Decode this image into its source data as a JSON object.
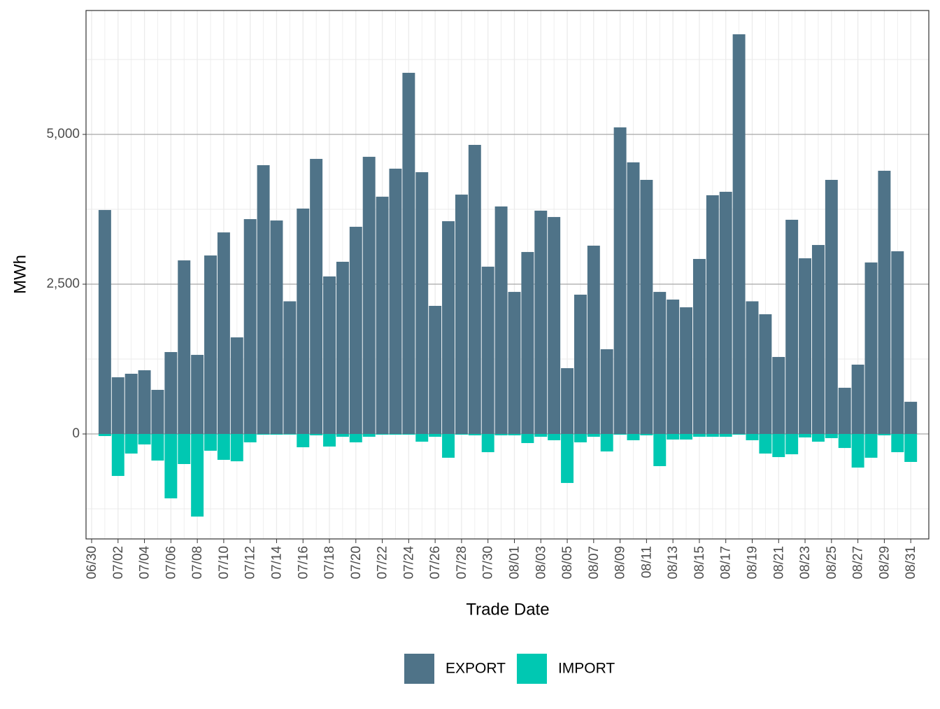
{
  "chart_data": {
    "type": "bar",
    "x_label": "Trade Date",
    "y_label": "MWh",
    "categories": [
      "06/30",
      null,
      "07/02",
      null,
      "07/04",
      null,
      "07/06",
      null,
      "07/08",
      null,
      "07/10",
      null,
      "07/12",
      null,
      "07/14",
      null,
      "07/16",
      null,
      "07/18",
      null,
      "07/20",
      null,
      "07/22",
      null,
      "07/24",
      null,
      "07/26",
      null,
      "07/28",
      null,
      "07/30",
      null,
      "08/01",
      null,
      "08/03",
      null,
      "08/05",
      null,
      "08/07",
      null,
      "08/09",
      null,
      "08/11",
      null,
      "08/13",
      null,
      "08/15",
      null,
      "08/17",
      null,
      "08/19",
      null,
      "08/21",
      null,
      "08/23",
      null,
      "08/25",
      null,
      "08/27",
      null,
      "08/29",
      null,
      "08/31"
    ],
    "series": [
      {
        "name": "EXPORT",
        "color": "#4f7388",
        "values": [
          null,
          3738,
          946,
          1005,
          1063,
          736,
          1367,
          2897,
          1320,
          2979,
          3364,
          1612,
          3586,
          4486,
          3563,
          2214,
          3762,
          4591,
          2629,
          2874,
          3458,
          4626,
          3960,
          4428,
          6028,
          4369,
          2138,
          3551,
          3995,
          4825,
          2792,
          3797,
          2371,
          3037,
          3727,
          3621,
          1098,
          2325,
          3143,
          1414,
          5117,
          4533,
          4241,
          2371,
          2243,
          2114,
          2921,
          3984,
          4042,
          6671,
          2214,
          1998,
          1285,
          3575,
          2932,
          3154,
          4241,
          771,
          1157,
          2862,
          4393,
          3049,
          537
        ]
      },
      {
        "name": "IMPORT",
        "color": "#00c8b2",
        "values": [
          null,
          -35,
          -701,
          -327,
          -175,
          -444,
          -1075,
          -502,
          -1379,
          -280,
          -432,
          -456,
          -140,
          -12,
          -12,
          -10,
          -222,
          -23,
          -210,
          -47,
          -140,
          -47,
          -12,
          -12,
          -12,
          -129,
          -47,
          -397,
          -12,
          -23,
          -304,
          -23,
          -23,
          -152,
          -47,
          -105,
          -818,
          -140,
          -47,
          -292,
          -12,
          -105,
          -23,
          -537,
          -93,
          -93,
          -47,
          -47,
          -47,
          -12,
          -105,
          -327,
          -386,
          -339,
          -58,
          -129,
          -70,
          -234,
          -561,
          -397,
          -23,
          -304,
          -467
        ]
      }
    ],
    "ylim": [
      -1752,
      7068
    ],
    "yticks": [
      0,
      {
        "value": 2500,
        "label": "2,500"
      },
      {
        "value": 5000,
        "label": "5,000"
      }
    ],
    "grid": true,
    "legend": "bottom"
  }
}
